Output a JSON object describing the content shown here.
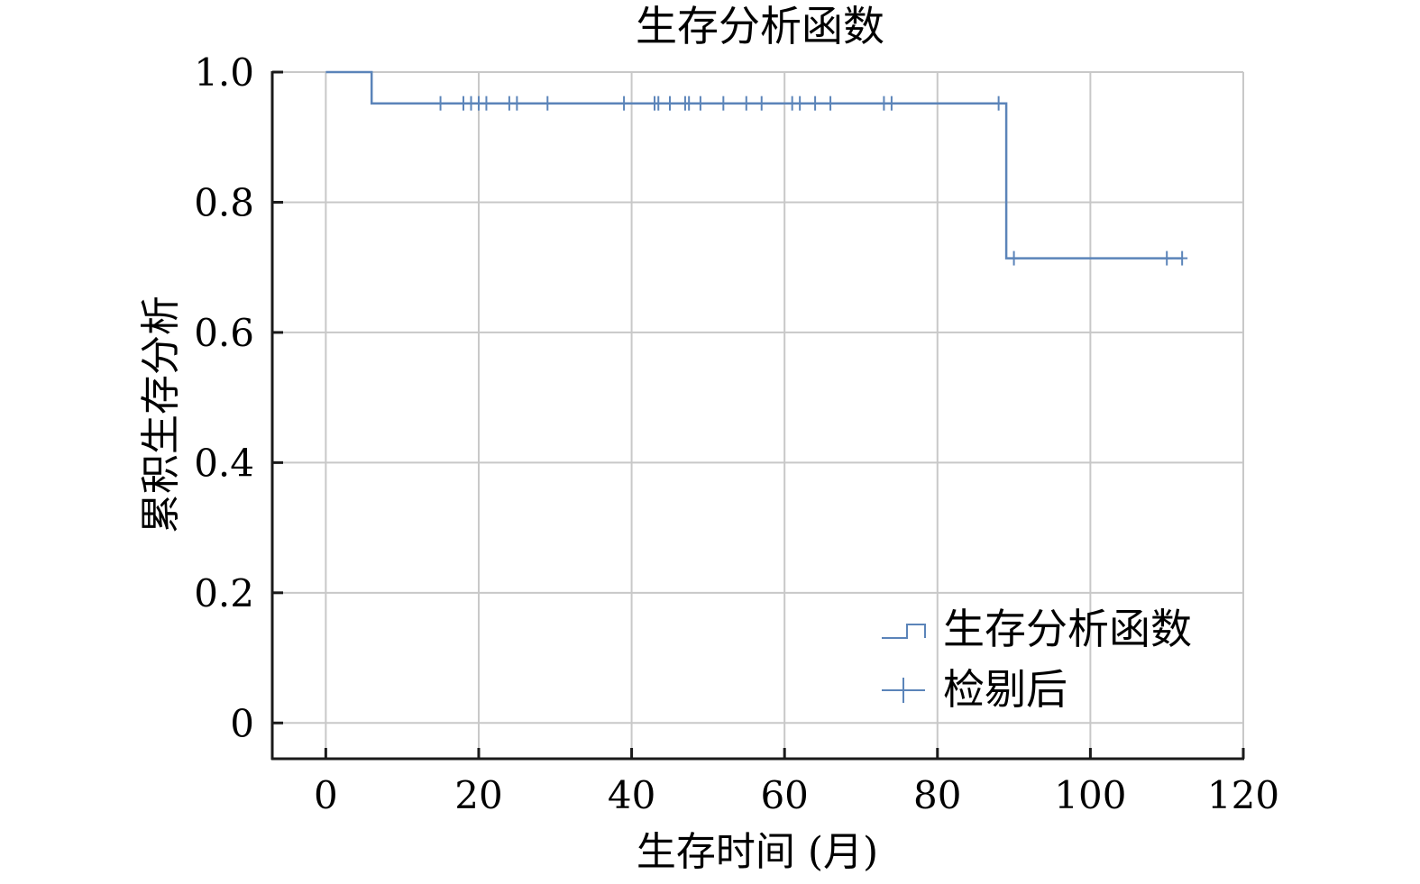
{
  "chart_data": {
    "type": "line",
    "title": "生存分析函数",
    "xlabel": "生存时间 (月)",
    "ylabel": "累积生存分析",
    "xlim": [
      -7,
      120
    ],
    "ylim": [
      -0.055,
      1.0
    ],
    "xticks": [
      0,
      20,
      40,
      60,
      80,
      100,
      120
    ],
    "yticks": [
      0,
      0.2,
      0.4,
      0.6,
      0.8,
      1.0
    ],
    "xtick_labels": [
      "0",
      "20",
      "40",
      "60",
      "80",
      "100",
      "120"
    ],
    "ytick_labels": [
      "0",
      "0.2",
      "0.4",
      "0.6",
      "0.8",
      "1.0"
    ],
    "grid": true,
    "legend_position": "bottom-right",
    "series": [
      {
        "name": "生存分析函数",
        "kind": "step",
        "color": "#5b84b9",
        "x": [
          0,
          6,
          6,
          89,
          89,
          112
        ],
        "y": [
          1.0,
          1.0,
          0.952,
          0.952,
          0.714,
          0.714
        ]
      },
      {
        "name": "检剔后",
        "kind": "censor-marks",
        "color": "#5b84b9",
        "x": [
          15,
          18,
          19,
          20,
          21,
          24,
          25,
          29,
          39,
          43,
          43.5,
          45,
          47,
          47.5,
          49,
          52,
          55,
          57,
          61,
          62,
          64,
          66,
          73,
          74,
          88,
          90,
          110,
          112
        ],
        "y": [
          0.952,
          0.952,
          0.952,
          0.952,
          0.952,
          0.952,
          0.952,
          0.952,
          0.952,
          0.952,
          0.952,
          0.952,
          0.952,
          0.952,
          0.952,
          0.952,
          0.952,
          0.952,
          0.952,
          0.952,
          0.952,
          0.952,
          0.952,
          0.952,
          0.952,
          0.714,
          0.714,
          0.714
        ]
      }
    ]
  }
}
